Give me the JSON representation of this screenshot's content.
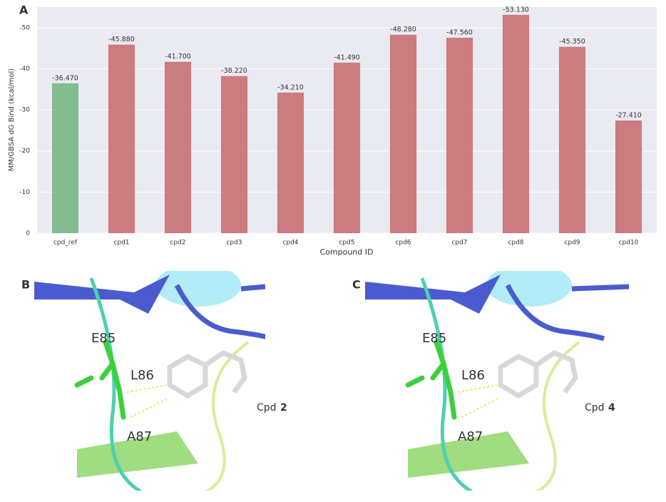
{
  "chart_data": {
    "type": "bar",
    "panel_label": "A",
    "x_label": "Compound ID",
    "y_label": "MM/GBSA dG Bind (kcal/mol)",
    "categories": [
      "cpd_ref",
      "cpd1",
      "cpd2",
      "cpd3",
      "cpd4",
      "cpd5",
      "cpd6",
      "cpd7",
      "cpd8",
      "cpd9",
      "cpd10"
    ],
    "values": [
      -36.47,
      -45.88,
      -41.7,
      -38.22,
      -34.21,
      -41.49,
      -48.28,
      -47.56,
      -53.13,
      -45.35,
      -27.41
    ],
    "value_labels": [
      "-36.470",
      "-45.880",
      "-41.700",
      "-38.220",
      "-34.210",
      "-41.490",
      "-48.280",
      "-47.560",
      "-53.130",
      "-45.350",
      "-27.410"
    ],
    "colors": [
      "#78b783",
      "#c96f72",
      "#c96f72",
      "#c96f72",
      "#c96f72",
      "#c96f72",
      "#c96f72",
      "#c96f72",
      "#c96f72",
      "#c96f72",
      "#c96f72"
    ],
    "ylim": [
      0,
      -55
    ],
    "yticks": [
      0,
      -10,
      -20,
      -30,
      -40,
      -50
    ],
    "grid": true
  },
  "panels": [
    {
      "label": "B",
      "residues": [
        "E85",
        "L86",
        "A87"
      ],
      "compound_prefix": "Cpd",
      "compound_id": "2"
    },
    {
      "label": "C",
      "residues": [
        "E85",
        "L86",
        "A87"
      ],
      "compound_prefix": "Cpd",
      "compound_id": "4"
    }
  ]
}
